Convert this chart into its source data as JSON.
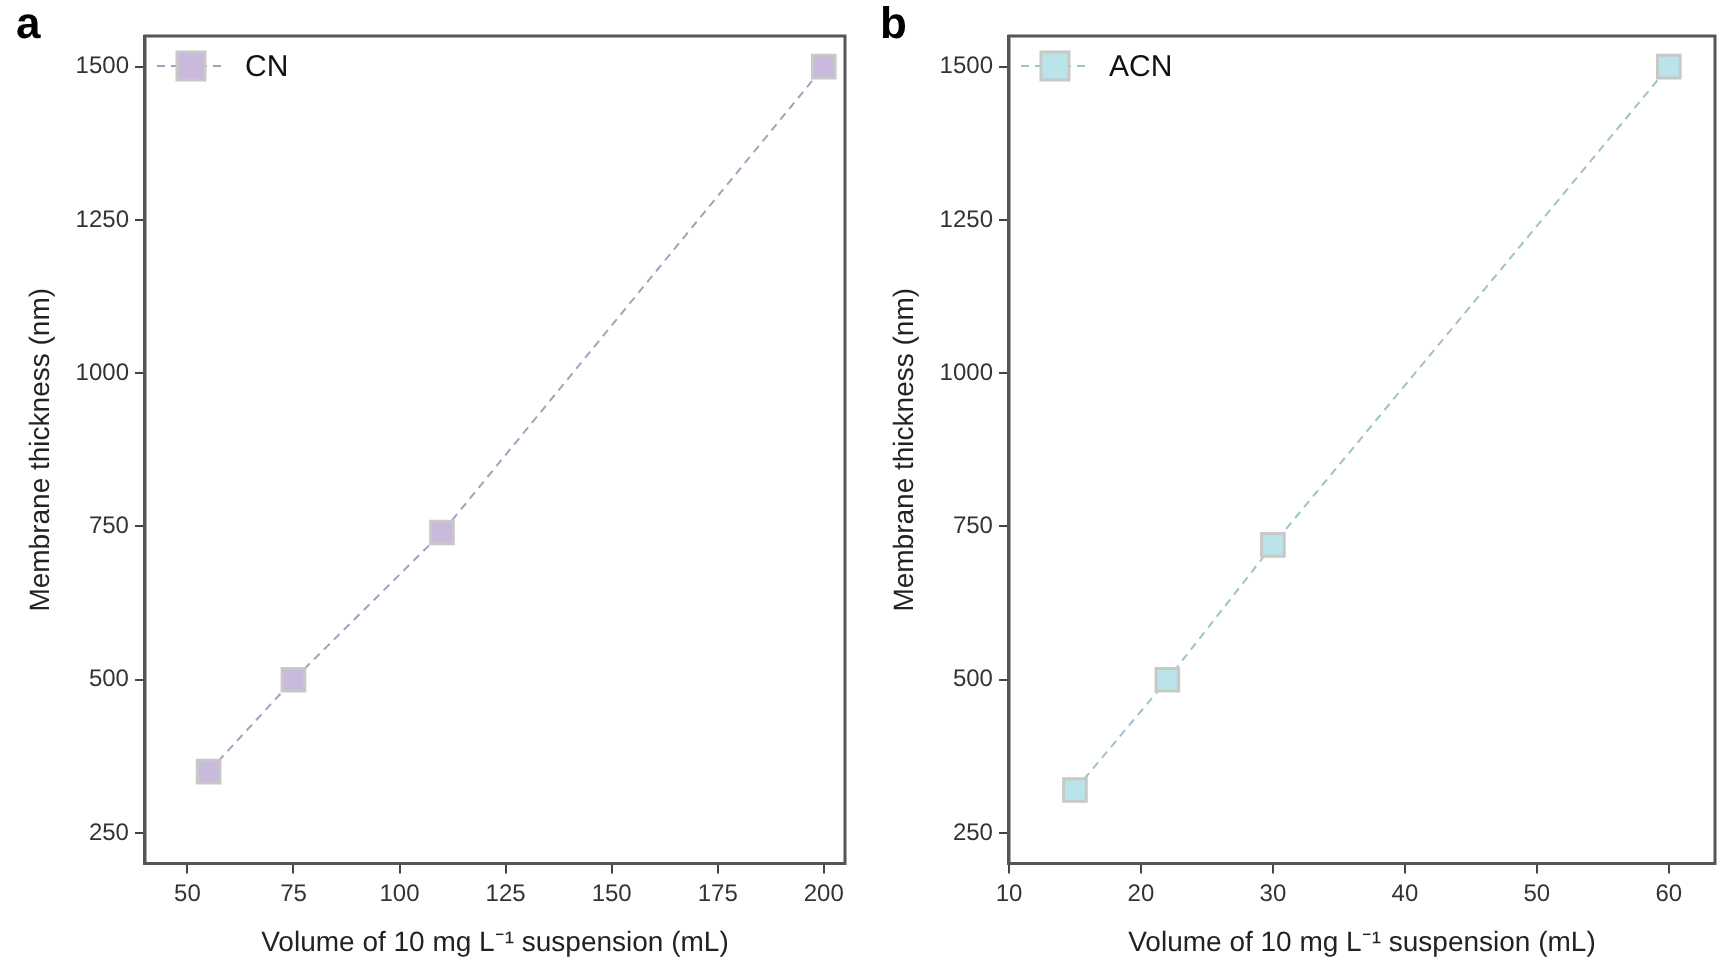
{
  "chart_data": [
    {
      "type": "line",
      "title": "a",
      "xlabel": "Volume of 10 mg L⁻¹ suspension (mL)",
      "ylabel": "Membrane thickness (nm)",
      "xlim": [
        40,
        205
      ],
      "xticks": [
        50,
        75,
        100,
        125,
        150,
        175,
        200
      ],
      "ylim": [
        200,
        1550
      ],
      "yticks": [
        250,
        500,
        750,
        1000,
        1250,
        1500
      ],
      "legend": "top left",
      "marker": "square",
      "line_style": "dashed",
      "grid": false,
      "series": [
        {
          "name": "CN",
          "color": "#c9b9dd",
          "x": [
            55,
            75,
            110,
            200
          ],
          "values": [
            350,
            500,
            740,
            1500
          ]
        }
      ]
    },
    {
      "type": "line",
      "title": "b",
      "xlabel": "Volume of 10 mg L⁻¹ suspension (mL)",
      "ylabel": "Membrane thickness (nm)",
      "xlim": [
        10,
        63.5
      ],
      "xticks": [
        10,
        20,
        30,
        40,
        50,
        60
      ],
      "ylim": [
        200,
        1550
      ],
      "yticks": [
        250,
        500,
        750,
        1000,
        1250,
        1500
      ],
      "legend": "top left",
      "marker": "square",
      "line_style": "dashed",
      "grid": false,
      "series": [
        {
          "name": "ACN",
          "color": "#b9e5ea",
          "x": [
            15,
            22,
            30,
            60
          ],
          "values": [
            320,
            500,
            720,
            1500
          ]
        }
      ]
    }
  ]
}
